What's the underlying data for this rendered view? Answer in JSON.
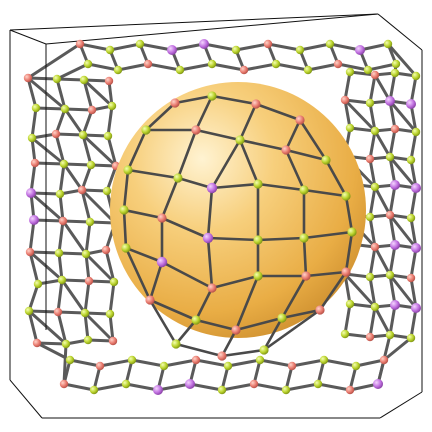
{
  "scene": {
    "subject": "porous-framework-unit-cell",
    "background_color": "#ffffff",
    "cell_edge_color": "#111111",
    "bond_color": "#5a5a5a",
    "pore_sphere_color": "#f0b64c",
    "pore_sphere_highlight": "#fff3d2",
    "atom_colors": {
      "yellow_green": "#b9d22b",
      "salmon": "#e97b6f",
      "violet": "#c070e0"
    }
  }
}
